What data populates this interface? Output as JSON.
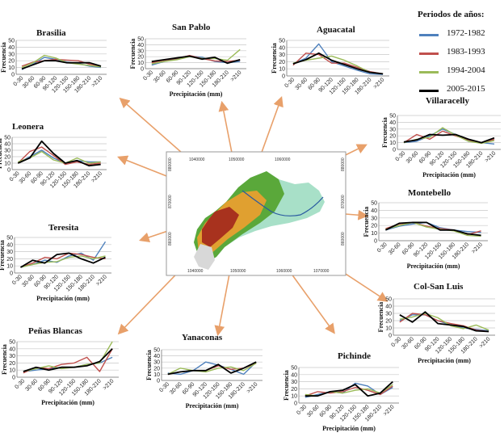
{
  "legend": {
    "title": "Periodos de años:",
    "items": [
      {
        "label": "1972-1982",
        "color": "#4f81bd"
      },
      {
        "label": "1983-1993",
        "color": "#c0504d"
      },
      {
        "label": "1994-2004",
        "color": "#9bbb59"
      },
      {
        "label": "2005-2015",
        "color": "#000000"
      }
    ]
  },
  "map": {
    "x_ticks": [
      "1040000",
      "1050000",
      "1060000"
    ],
    "x_ticks_bottom": [
      "1040000",
      "1050000",
      "1060000",
      "1070000"
    ],
    "y_ticks": [
      "880000",
      "870000",
      "860000"
    ],
    "colors": {
      "high": "#a8321e",
      "mid": "#e0a030",
      "low": "#5aa83a",
      "plain": "#a8e0c8",
      "relief": "#d8d8d8",
      "arrow": "#e8a06a",
      "river": "#2a5aa0"
    }
  },
  "chart_data": [
    {
      "type": "line",
      "title": "Brasilia",
      "xlabel": "",
      "ylabel": "Frecuencia",
      "categories": [
        "0-30",
        "30-60",
        "60-90",
        "90-120",
        "120-150",
        "150-180",
        "180-210",
        ">210"
      ],
      "ylim": [
        0,
        50
      ],
      "yticks": [
        "0",
        "10",
        "20",
        "30",
        "40",
        "50"
      ],
      "series": [
        {
          "name": "1972-1982",
          "values": [
            7,
            15,
            25,
            22,
            18,
            16,
            12,
            10
          ]
        },
        {
          "name": "1983-1993",
          "values": [
            12,
            18,
            20,
            22,
            21,
            20,
            15,
            12
          ]
        },
        {
          "name": "1994-2004",
          "values": [
            10,
            17,
            28,
            24,
            17,
            15,
            13,
            11
          ]
        },
        {
          "name": "2005-2015",
          "values": [
            8,
            14,
            20,
            20,
            17,
            17,
            17,
            12
          ]
        }
      ]
    },
    {
      "type": "line",
      "title": "San Pablo",
      "xlabel": "Precipitación (mm)",
      "ylabel": "Frecuencia",
      "categories": [
        "0-30",
        "30-60",
        "60-90",
        "90-120",
        "120-150",
        "150-180",
        "180-210",
        ">210"
      ],
      "ylim": [
        0,
        50
      ],
      "yticks": [
        "0",
        "10",
        "20",
        "30",
        "40",
        "50"
      ],
      "series": [
        {
          "name": "1972-1982",
          "values": [
            6,
            12,
            16,
            21,
            19,
            12,
            10,
            12
          ]
        },
        {
          "name": "1983-1993",
          "values": [
            10,
            14,
            17,
            22,
            17,
            13,
            12,
            14
          ]
        },
        {
          "name": "1994-2004",
          "values": [
            8,
            12,
            15,
            20,
            17,
            17,
            14,
            32
          ]
        },
        {
          "name": "2005-2015",
          "values": [
            12,
            15,
            18,
            21,
            16,
            19,
            9,
            15
          ]
        }
      ]
    },
    {
      "type": "line",
      "title": "Aguacatal",
      "xlabel": "",
      "ylabel": "Frecuencia",
      "categories": [
        "0-30",
        "30-60",
        "60-90",
        "90-120",
        "120-150",
        "150-180",
        "180-210",
        ">210"
      ],
      "ylim": [
        0,
        50
      ],
      "yticks": [
        "0",
        "10",
        "20",
        "30",
        "40",
        "50"
      ],
      "series": [
        {
          "name": "1972-1982",
          "values": [
            17,
            25,
            45,
            20,
            14,
            8,
            3,
            2
          ]
        },
        {
          "name": "1983-1993",
          "values": [
            15,
            32,
            30,
            18,
            18,
            12,
            6,
            3
          ]
        },
        {
          "name": "1994-2004",
          "values": [
            18,
            22,
            25,
            28,
            22,
            14,
            5,
            3
          ]
        },
        {
          "name": "2005-2015",
          "values": [
            17,
            23,
            32,
            22,
            16,
            10,
            5,
            3
          ]
        }
      ]
    },
    {
      "type": "line",
      "title": "Villaracelly",
      "xlabel": "Precipitación (mm)",
      "ylabel": "Frecuencia",
      "categories": [
        "0-30",
        "30-60",
        "60-90",
        "90-120",
        "120-150",
        "150-180",
        "180-210",
        ">210"
      ],
      "ylim": [
        0,
        50
      ],
      "yticks": [
        "0",
        "10",
        "20",
        "30",
        "40",
        "50"
      ],
      "series": [
        {
          "name": "1972-1982",
          "values": [
            10,
            12,
            20,
            30,
            22,
            12,
            10,
            8
          ]
        },
        {
          "name": "1983-1993",
          "values": [
            10,
            22,
            15,
            27,
            20,
            14,
            9,
            15
          ]
        },
        {
          "name": "1994-2004",
          "values": [
            10,
            15,
            18,
            32,
            21,
            12,
            9,
            13
          ]
        },
        {
          "name": "2005-2015",
          "values": [
            11,
            14,
            22,
            21,
            22,
            15,
            10,
            17
          ]
        }
      ]
    },
    {
      "type": "line",
      "title": "Leonera",
      "xlabel": "",
      "ylabel": "Frecuencia",
      "categories": [
        "0-30",
        "30-60",
        "60-90",
        "90-120",
        "120-150",
        "150-180",
        "180-210",
        ">210"
      ],
      "ylim": [
        0,
        50
      ],
      "yticks": [
        "0",
        "10",
        "20",
        "30",
        "40",
        "50"
      ],
      "series": [
        {
          "name": "1972-1982",
          "values": [
            10,
            20,
            30,
            18,
            10,
            14,
            12,
            12
          ]
        },
        {
          "name": "1983-1993",
          "values": [
            10,
            28,
            35,
            22,
            8,
            12,
            8,
            10
          ]
        },
        {
          "name": "1994-2004",
          "values": [
            12,
            18,
            28,
            15,
            10,
            18,
            10,
            12
          ]
        },
        {
          "name": "2005-2015",
          "values": [
            10,
            18,
            44,
            25,
            10,
            14,
            6,
            8
          ]
        }
      ]
    },
    {
      "type": "line",
      "title": "Montebello",
      "xlabel": "Precipitación (mm)",
      "ylabel": "Frecuencia",
      "categories": [
        "0-30",
        "30-60",
        "60-90",
        "90-120",
        "120-150",
        "150-180",
        "180-210",
        ">210"
      ],
      "ylim": [
        0,
        50
      ],
      "yticks": [
        "0",
        "10",
        "20",
        "30",
        "40",
        "50"
      ],
      "series": [
        {
          "name": "1972-1982",
          "values": [
            14,
            19,
            22,
            24,
            17,
            14,
            12,
            11
          ]
        },
        {
          "name": "1983-1993",
          "values": [
            16,
            22,
            24,
            19,
            16,
            14,
            8,
            13
          ]
        },
        {
          "name": "1994-2004",
          "values": [
            15,
            20,
            24,
            18,
            15,
            13,
            7,
            6
          ]
        },
        {
          "name": "2005-2015",
          "values": [
            14,
            23,
            24,
            24,
            14,
            14,
            9,
            7
          ]
        }
      ]
    },
    {
      "type": "line",
      "title": "Teresita",
      "xlabel": "Precipitación (mm)",
      "ylabel": "Frecuencia",
      "categories": [
        "0-30",
        "30-60",
        "60-90",
        "90-120",
        "120-150",
        "150-180",
        "180-210",
        ">210"
      ],
      "ylim": [
        0,
        50
      ],
      "yticks": [
        "0",
        "10",
        "20",
        "30",
        "40",
        "50"
      ],
      "series": [
        {
          "name": "1972-1982",
          "values": [
            8,
            12,
            18,
            15,
            24,
            28,
            18,
            44
          ]
        },
        {
          "name": "1983-1993",
          "values": [
            8,
            14,
            22,
            20,
            28,
            26,
            22,
            20
          ]
        },
        {
          "name": "1994-2004",
          "values": [
            8,
            12,
            15,
            16,
            22,
            24,
            20,
            24
          ]
        },
        {
          "name": "2005-2015",
          "values": [
            8,
            18,
            14,
            26,
            28,
            20,
            14,
            22
          ]
        }
      ]
    },
    {
      "type": "line",
      "title": "Col-San Luis",
      "xlabel": "Precipitación (mm)",
      "ylabel": "Frecuencia",
      "categories": [
        "0-30",
        "30-60",
        "60-90",
        "90-120",
        "120-150",
        "150-180",
        "180-210",
        ">210"
      ],
      "ylim": [
        0,
        50
      ],
      "yticks": [
        "0",
        "10",
        "20",
        "30",
        "40",
        "50"
      ],
      "series": [
        {
          "name": "1972-1982",
          "values": [
            20,
            28,
            28,
            20,
            14,
            10,
            8,
            6
          ]
        },
        {
          "name": "1983-1993",
          "values": [
            18,
            30,
            28,
            20,
            16,
            13,
            7,
            5
          ]
        },
        {
          "name": "1994-2004",
          "values": [
            22,
            25,
            30,
            24,
            13,
            9,
            14,
            7
          ]
        },
        {
          "name": "2005-2015",
          "values": [
            28,
            18,
            32,
            16,
            14,
            12,
            6,
            5
          ]
        }
      ]
    },
    {
      "type": "line",
      "title": "Peñas Blancas",
      "xlabel": "Precipitación (mm)",
      "ylabel": "Frecuencia",
      "categories": [
        "0-30",
        "30-60",
        "60-90",
        "90-120",
        "120-150",
        "150-180",
        "180-210",
        ">210"
      ],
      "ylim": [
        0,
        50
      ],
      "yticks": [
        "0",
        "10",
        "20",
        "30",
        "40",
        "50"
      ],
      "series": [
        {
          "name": "1972-1982",
          "values": [
            8,
            10,
            12,
            14,
            14,
            18,
            20,
            28
          ]
        },
        {
          "name": "1983-1993",
          "values": [
            6,
            14,
            12,
            18,
            20,
            28,
            8,
            40
          ]
        },
        {
          "name": "1994-2004",
          "values": [
            8,
            12,
            16,
            12,
            14,
            18,
            20,
            50
          ]
        },
        {
          "name": "2005-2015",
          "values": [
            8,
            14,
            10,
            14,
            14,
            16,
            22,
            40
          ]
        }
      ]
    },
    {
      "type": "line",
      "title": "Yanaconas",
      "xlabel": "Precipitación (mm)",
      "ylabel": "Frecuencia",
      "categories": [
        "0-30",
        "30-60",
        "60-90",
        "90-120",
        "120-150",
        "150-180",
        "180-210",
        ">210"
      ],
      "ylim": [
        0,
        50
      ],
      "yticks": [
        "0",
        "10",
        "20",
        "30",
        "40",
        "50"
      ],
      "series": [
        {
          "name": "1972-1982",
          "values": [
            12,
            10,
            16,
            30,
            25,
            18,
            10,
            30
          ]
        },
        {
          "name": "1983-1993",
          "values": [
            10,
            14,
            16,
            16,
            24,
            18,
            20,
            28
          ]
        },
        {
          "name": "1994-2004",
          "values": [
            10,
            20,
            16,
            14,
            20,
            22,
            16,
            28
          ]
        },
        {
          "name": "2005-2015",
          "values": [
            10,
            14,
            16,
            16,
            26,
            12,
            20,
            30
          ]
        }
      ]
    },
    {
      "type": "line",
      "title": "Pichinde",
      "xlabel": "Precipitación (mm)",
      "ylabel": "Frecuencia",
      "categories": [
        "0-30",
        "30-60",
        "60-90",
        "90-120",
        "120-150",
        "150-180",
        "180-210",
        ">210"
      ],
      "ylim": [
        0,
        50
      ],
      "yticks": [
        "0",
        "10",
        "20",
        "30",
        "40",
        "50"
      ],
      "series": [
        {
          "name": "1972-1982",
          "values": [
            8,
            12,
            16,
            14,
            28,
            24,
            12,
            22
          ]
        },
        {
          "name": "1983-1993",
          "values": [
            10,
            16,
            14,
            16,
            22,
            18,
            12,
            24
          ]
        },
        {
          "name": "1994-2004",
          "values": [
            12,
            10,
            16,
            14,
            18,
            20,
            14,
            26
          ]
        },
        {
          "name": "2005-2015",
          "values": [
            10,
            10,
            16,
            18,
            26,
            10,
            14,
            30
          ]
        }
      ]
    }
  ]
}
